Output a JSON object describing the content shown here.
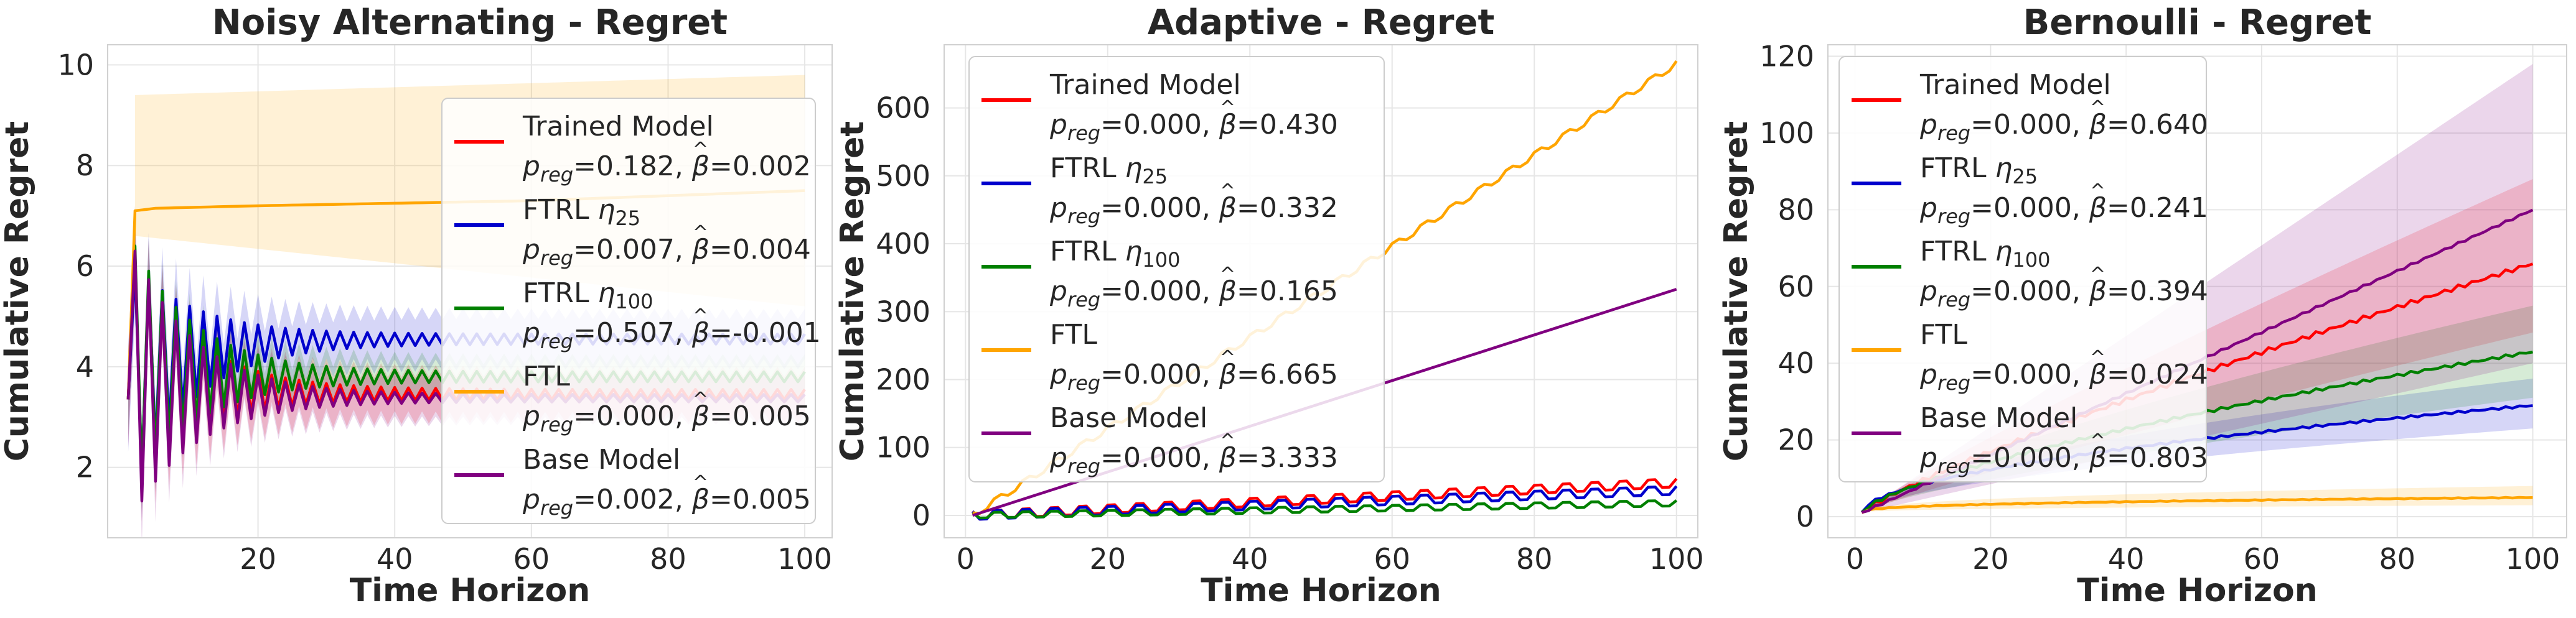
{
  "colors": {
    "Trained Model": "#ff0000",
    "FTRL η25": "#0000cc",
    "FTRL η100": "#008000",
    "FTL": "#ffa500",
    "Base Model": "#800080"
  },
  "chart_data": [
    {
      "type": "line",
      "title": "Noisy Alternating - Regret",
      "xlabel": "Time Horizon",
      "ylabel": "Cumulative Regret",
      "xlim": [
        -2,
        104
      ],
      "ylim": [
        0.6,
        10.4
      ],
      "xticks": [
        20,
        40,
        60,
        80,
        100
      ],
      "yticks": [
        2,
        4,
        6,
        8,
        10
      ],
      "grid": true,
      "legend_position": "center-right",
      "series": [
        {
          "name": "Trained Model",
          "stats": "=0.182, ",
          "beta": "=0.002",
          "pattern": "alternating",
          "start": 3.35,
          "peak": 6.2,
          "trough": 1.6,
          "end_hi": 3.55,
          "end_lo": 3.35,
          "band": 0.45
        },
        {
          "name": "FTRL η25",
          "stats": "=0.007, ",
          "beta": "=0.004",
          "pattern": "alternating",
          "start": 3.35,
          "peak": 6.0,
          "trough": 1.6,
          "end_hi": 4.65,
          "end_lo": 4.45,
          "band": 0.5
        },
        {
          "name": "FTRL η100",
          "stats": "=0.507, ",
          "beta": "=-0.001",
          "pattern": "alternating",
          "start": 3.35,
          "peak": 6.4,
          "trough": 1.6,
          "end_hi": 3.9,
          "end_lo": 3.7,
          "band": 0.35
        },
        {
          "name": "FTL",
          "stats": "=0.000, ",
          "beta": "=0.005",
          "pattern": "smooth",
          "points": [
            [
              1,
              3.35
            ],
            [
              2,
              7.1
            ],
            [
              5,
              7.15
            ],
            [
              20,
              7.2
            ],
            [
              40,
              7.25
            ],
            [
              60,
              7.3
            ],
            [
              80,
              7.4
            ],
            [
              100,
              7.5
            ]
          ],
          "band_lo": [
            [
              2,
              6.6
            ],
            [
              100,
              5.2
            ]
          ],
          "band_hi": [
            [
              2,
              9.4
            ],
            [
              100,
              9.8
            ]
          ]
        },
        {
          "name": "Base Model",
          "stats": "=0.002, ",
          "beta": "=0.005",
          "pattern": "alternating",
          "start": 3.35,
          "peak": 6.3,
          "trough": 1.1,
          "end_hi": 3.45,
          "end_lo": 3.3,
          "band": 0.45
        }
      ]
    },
    {
      "type": "line",
      "title": "Adaptive - Regret",
      "xlabel": "Time Horizon",
      "ylabel": "Cumulative Regret",
      "xlim": [
        -3,
        103
      ],
      "ylim": [
        -33,
        693
      ],
      "xticks": [
        0,
        20,
        40,
        60,
        80,
        100
      ],
      "yticks": [
        0,
        100,
        200,
        300,
        400,
        500,
        600
      ],
      "grid": true,
      "legend_position": "top-left",
      "series": [
        {
          "name": "Trained Model",
          "stats": "=0.000, ",
          "beta": "=0.430",
          "pattern": "zigzag",
          "end": 48,
          "amp": 6
        },
        {
          "name": "FTRL η25",
          "stats": "=0.000, ",
          "beta": "=0.332",
          "pattern": "zigzag",
          "end": 37,
          "amp": 6
        },
        {
          "name": "FTRL η100",
          "stats": "=0.000, ",
          "beta": "=0.165",
          "pattern": "zigzag",
          "end": 18,
          "amp": 4
        },
        {
          "name": "FTL",
          "stats": "=0.000, ",
          "beta": "=6.665",
          "pattern": "zigzag",
          "end": 665,
          "amp": 4
        },
        {
          "name": "Base Model",
          "stats": "=0.000, ",
          "beta": "=3.333",
          "pattern": "zigzag",
          "end": 333,
          "amp": 0
        }
      ]
    },
    {
      "type": "line",
      "title": "Bernoulli - Regret",
      "xlabel": "Time Horizon",
      "ylabel": "Cumulative Regret",
      "xlim": [
        -4,
        105
      ],
      "ylim": [
        -5.5,
        123
      ],
      "xticks": [
        0,
        20,
        40,
        60,
        80,
        100
      ],
      "yticks": [
        0,
        20,
        40,
        60,
        80,
        100,
        120
      ],
      "grid": true,
      "legend_position": "top-left",
      "series": [
        {
          "name": "Trained Model",
          "stats": "=0.000, ",
          "beta": "=0.640",
          "pattern": "power",
          "start": 1,
          "end": 66,
          "p": 0.85,
          "band_lo_end": 48,
          "band_hi_end": 88,
          "noise": 0.6
        },
        {
          "name": "FTRL η25",
          "stats": "=0.000, ",
          "beta": "=0.241",
          "pattern": "power",
          "start": 1,
          "end": 29,
          "p": 0.55,
          "band_lo_end": 23,
          "band_hi_end": 36,
          "noise": 0.3
        },
        {
          "name": "FTRL η100",
          "stats": "=0.000, ",
          "beta": "=0.394",
          "pattern": "power",
          "start": 1,
          "end": 43,
          "p": 0.7,
          "band_lo_end": 31,
          "band_hi_end": 55,
          "noise": 0.4
        },
        {
          "name": "FTL",
          "stats": "=0.000, ",
          "beta": "=0.024",
          "pattern": "power",
          "start": 1,
          "end": 5,
          "p": 0.35,
          "band_lo_end": 3,
          "band_hi_end": 8,
          "noise": 0.1
        },
        {
          "name": "Base Model",
          "stats": "=0.000, ",
          "beta": "=0.803",
          "pattern": "power",
          "start": 1,
          "end": 80,
          "p": 1.0,
          "band_lo_end": 40,
          "band_hi_end": 118,
          "noise": 0.3
        }
      ]
    }
  ]
}
